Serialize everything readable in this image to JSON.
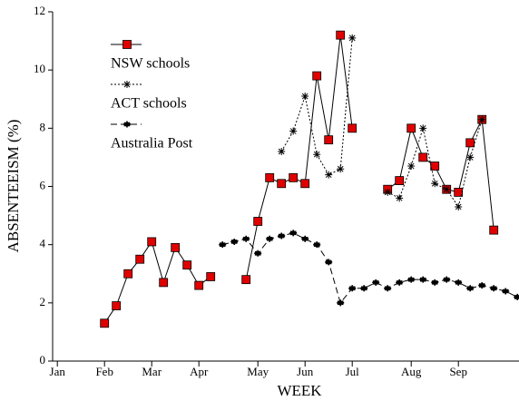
{
  "chart_data": {
    "type": "line",
    "x_label": "WEEK",
    "y_label": "ABSENTEEISM (%)",
    "x": [
      4,
      5,
      6,
      7,
      8,
      9,
      10,
      11,
      12,
      13,
      14,
      15,
      16,
      17,
      18,
      19,
      20,
      21,
      22,
      23,
      24,
      25,
      26,
      27,
      28,
      29,
      30,
      31,
      32,
      33,
      34,
      35,
      36,
      37,
      38,
      39
    ],
    "xlim": [
      -0.4,
      39.1
    ],
    "xticks": [
      {
        "value": 0,
        "label": "Jan"
      },
      {
        "value": 4,
        "label": "Feb"
      },
      {
        "value": 8,
        "label": "Mar"
      },
      {
        "value": 12,
        "label": "Apr"
      },
      {
        "value": 17,
        "label": "May"
      },
      {
        "value": 21,
        "label": "Jun"
      },
      {
        "value": 25,
        "label": "Jul"
      },
      {
        "value": 30,
        "label": "Aug"
      },
      {
        "value": 34,
        "label": "Sep"
      }
    ],
    "ylim": [
      0,
      12
    ],
    "yticks": [
      0,
      2,
      4,
      6,
      8,
      10,
      12
    ],
    "series": [
      {
        "name": "NSW schools",
        "color": "#e00000",
        "values": [
          1.3,
          1.9,
          3.0,
          3.5,
          4.1,
          2.7,
          3.9,
          3.3,
          2.6,
          2.9,
          null,
          null,
          2.8,
          4.8,
          6.3,
          6.1,
          6.3,
          6.1,
          9.8,
          7.6,
          11.2,
          8.0,
          null,
          null,
          5.9,
          6.2,
          8.0,
          7.0,
          6.7,
          5.9,
          5.8,
          7.5,
          8.3,
          4.5,
          null,
          null
        ]
      },
      {
        "name": "ACT schools",
        "color": "#000000",
        "values": [
          null,
          null,
          null,
          null,
          null,
          null,
          null,
          null,
          null,
          null,
          null,
          null,
          null,
          null,
          null,
          7.2,
          7.9,
          9.1,
          7.1,
          6.4,
          6.6,
          11.1,
          null,
          null,
          5.8,
          5.6,
          6.7,
          8.0,
          6.1,
          5.9,
          5.3,
          7.0,
          8.3,
          null,
          null,
          null
        ]
      },
      {
        "name": "Australia Post",
        "color": "#000000",
        "values": [
          null,
          null,
          null,
          null,
          null,
          null,
          null,
          null,
          null,
          null,
          4.0,
          4.1,
          4.2,
          3.7,
          4.2,
          4.3,
          4.4,
          4.2,
          4.0,
          3.4,
          2.0,
          2.5,
          2.5,
          2.7,
          2.5,
          2.7,
          2.8,
          2.8,
          2.7,
          2.8,
          2.7,
          2.5,
          2.6,
          2.5,
          2.4,
          2.2
        ]
      }
    ]
  }
}
